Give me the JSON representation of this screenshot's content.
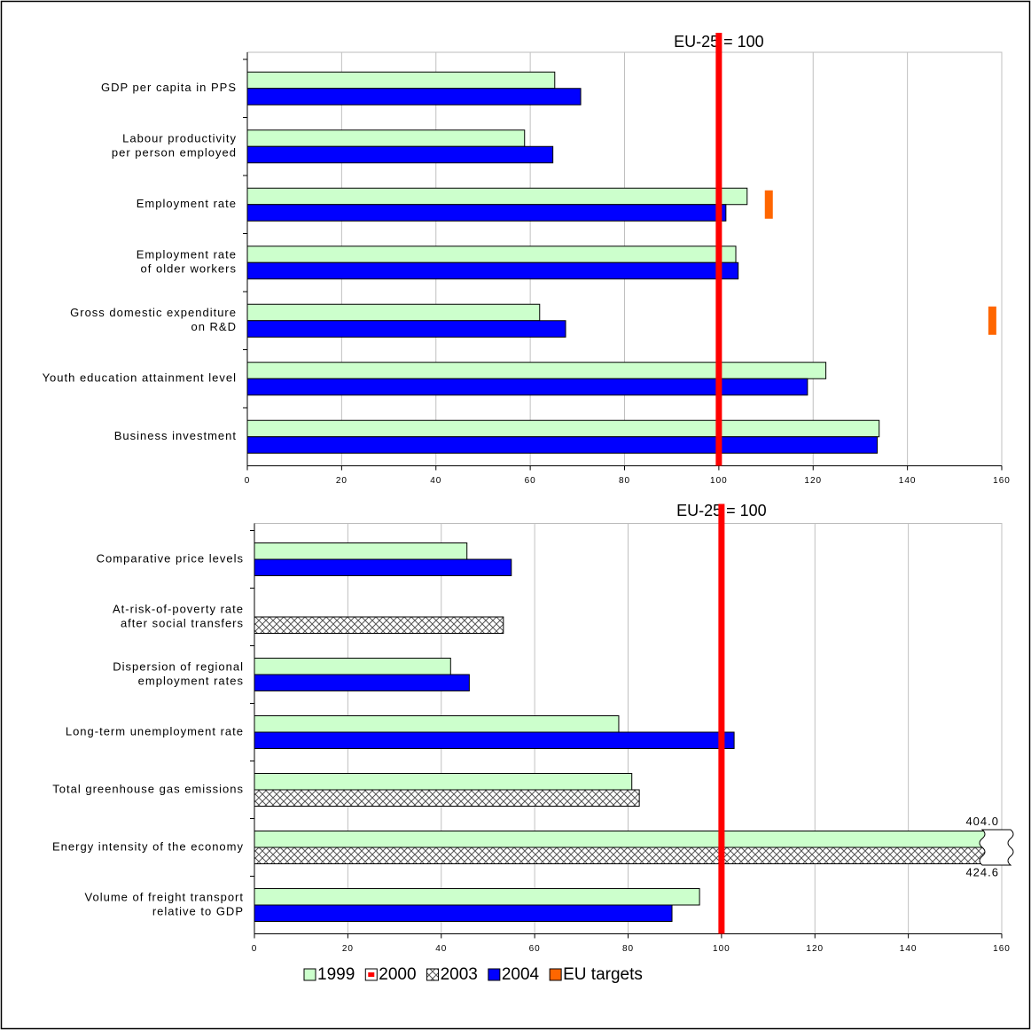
{
  "chart_data": [
    {
      "type": "bar",
      "orientation": "horizontal",
      "title": "EU-25 = 100",
      "categories": [
        [
          "GDP per capita in PPS"
        ],
        [
          "Labour productivity",
          "per person employed"
        ],
        [
          "Employment rate"
        ],
        [
          "Employment rate",
          "of older workers"
        ],
        [
          "Gross domestic expenditure",
          "on R&D"
        ],
        [
          "Youth education attainment level"
        ],
        [
          "Business investment"
        ]
      ],
      "series": [
        {
          "color": "#ccffcc",
          "style": "fill",
          "values": [
            65.2,
            58.8,
            106,
            103.6,
            62,
            122.7,
            134
          ]
        },
        {
          "color": "#0000ff",
          "style": "fill",
          "values": [
            70.7,
            64.8,
            101.5,
            104.1,
            67.5,
            118.8,
            133.6
          ]
        },
        {
          "color": "#ff6600",
          "style": "target",
          "values": [
            null,
            null,
            110.6,
            null,
            158,
            null,
            null
          ]
        }
      ],
      "xlim": [
        0,
        160
      ],
      "xticks": [
        0,
        20,
        40,
        60,
        80,
        100,
        120,
        140,
        160
      ],
      "grid": true,
      "reference": 100,
      "reference_color": "#ff0000"
    },
    {
      "type": "bar",
      "orientation": "horizontal",
      "title": "EU-25 = 100",
      "categories": [
        [
          "Comparative price levels"
        ],
        [
          "At-risk-of-poverty rate",
          "after social transfers"
        ],
        [
          "Dispersion of regional",
          "employment rates"
        ],
        [
          "Long-term unemployment rate"
        ],
        [
          "Total greenhouse gas emissions"
        ],
        [
          "Energy intensity of the economy"
        ],
        [
          "Volume of freight transport",
          "relative to GDP"
        ]
      ],
      "series": [
        {
          "name": "1999",
          "color": "#ccffcc",
          "style": "fill",
          "values": [
            45.5,
            null,
            42,
            78,
            80.8,
            404.0,
            95.3
          ],
          "value_labels": [
            null,
            null,
            null,
            null,
            null,
            "404.0",
            null
          ]
        },
        {
          "name": "2000",
          "color": "#ff0000",
          "style": "marker",
          "values": [
            null,
            null,
            null,
            null,
            null,
            null,
            null
          ]
        },
        {
          "name": "2003",
          "color": "#808080",
          "style": "crosshatch",
          "values": [
            null,
            53.3,
            null,
            null,
            82.4,
            424.6,
            null
          ],
          "value_labels": [
            null,
            null,
            null,
            null,
            null,
            "424.6",
            null
          ]
        },
        {
          "name": "2004",
          "color": "#0000ff",
          "style": "fill",
          "values": [
            55,
            null,
            46,
            102.7,
            null,
            null,
            89.4
          ]
        },
        {
          "name": "EU targets",
          "color": "#ff6600",
          "style": "target",
          "values": [
            null,
            null,
            null,
            null,
            null,
            null,
            null
          ]
        }
      ],
      "xlim": [
        0,
        160
      ],
      "xticks": [
        0,
        20,
        40,
        60,
        80,
        100,
        120,
        140,
        160
      ],
      "grid": true,
      "reference": 100,
      "reference_color": "#ff0000",
      "legend": "bottom"
    }
  ]
}
